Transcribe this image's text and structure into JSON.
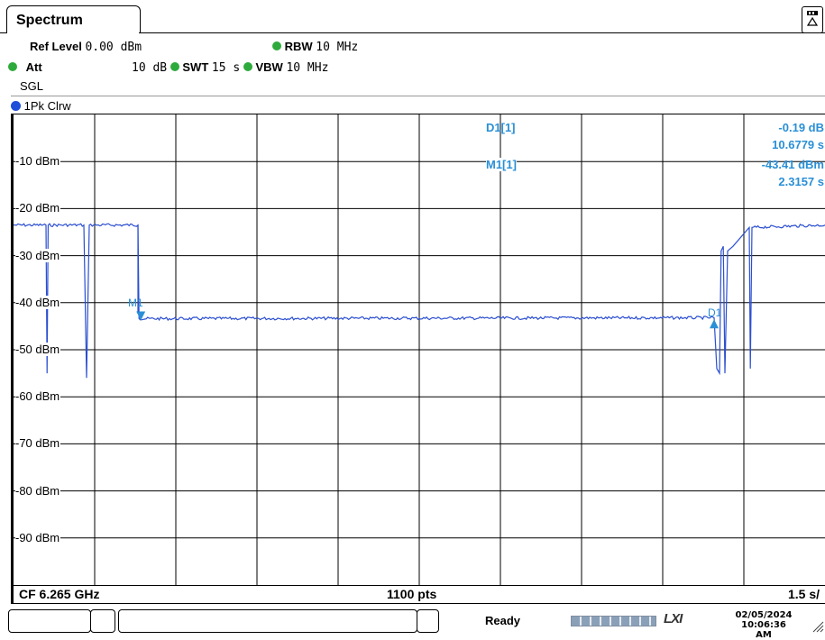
{
  "tab": {
    "title": "Spectrum",
    "corner_button_icon": "display-config-icon"
  },
  "header": {
    "ref_level_label": "Ref Level",
    "ref_level_value": "0.00 dBm",
    "att_label": "Att",
    "att_value": "10 dB",
    "swt_label": "SWT",
    "swt_value": "15 s",
    "rbw_label": "RBW",
    "rbw_value": "10 MHz",
    "vbw_label": "VBW",
    "vbw_value": "10 MHz",
    "mode": "SGL"
  },
  "trace": {
    "label": "1Pk Clrw",
    "color": "#1e4fd8"
  },
  "markers": {
    "d1_name": "D1[1]",
    "d1_value": "-0.19 dB",
    "d1_time": "10.6779 s",
    "m1_name": "M1[1]",
    "m1_value": "-43.41 dBm",
    "m1_time": "2.3157 s",
    "m1_tag": "M1",
    "d1_tag": "D1",
    "color": "#2a8fd6"
  },
  "footer": {
    "center_freq": "CF 6.265 GHz",
    "points": "1100 pts",
    "per_div": "1.5 s/"
  },
  "status": {
    "ready": "Ready",
    "lxi": "LXI",
    "date": "02/05/2024",
    "time": "10:06:36 AM"
  },
  "chart_data": {
    "type": "line",
    "ylabels": [
      "-10 dBm",
      "-20 dBm",
      "-30 dBm",
      "-40 dBm",
      "-50 dBm",
      "-60 dBm",
      "-70 dBm",
      "-80 dBm",
      "-90 dBm"
    ],
    "ylim": [
      -100,
      0
    ],
    "xlim": [
      0,
      15
    ],
    "xunit": "s",
    "grid": true,
    "series": [
      {
        "values_desc": "",
        "points": [
          [
            0.0,
            -23.5
          ],
          [
            0.6,
            -23.5
          ],
          [
            0.62,
            -55
          ],
          [
            0.64,
            -23.5
          ],
          [
            1.3,
            -23.5
          ],
          [
            1.35,
            -56
          ],
          [
            1.4,
            -23.5
          ],
          [
            2.3,
            -23.5
          ],
          [
            2.32,
            -43.4
          ],
          [
            12.95,
            -43.2
          ],
          [
            13.0,
            -54
          ],
          [
            13.05,
            -55
          ],
          [
            13.08,
            -29
          ],
          [
            13.12,
            -28
          ],
          [
            13.15,
            -55
          ],
          [
            13.2,
            -29
          ],
          [
            13.3,
            -28
          ],
          [
            13.6,
            -24
          ],
          [
            13.62,
            -54
          ],
          [
            13.65,
            -24
          ],
          [
            15.0,
            -23.5
          ]
        ]
      }
    ]
  }
}
